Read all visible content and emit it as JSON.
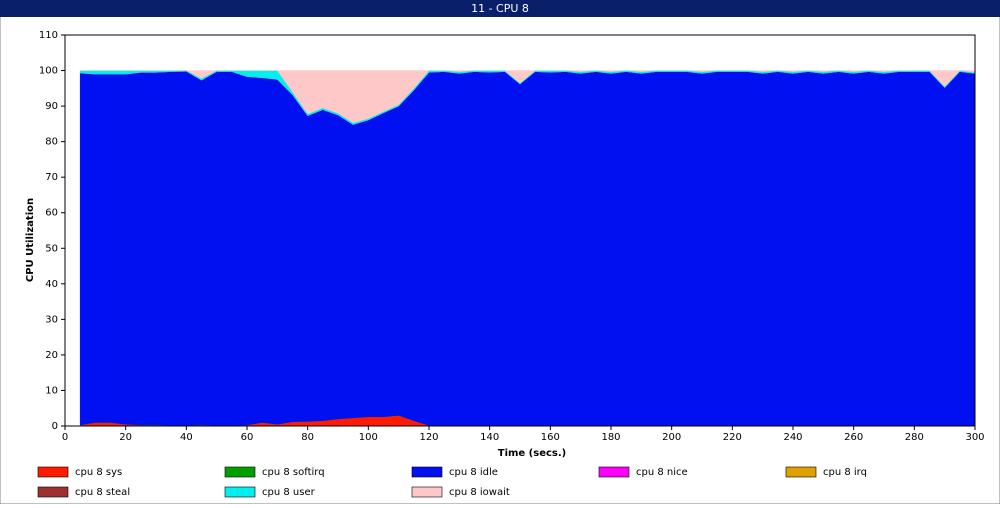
{
  "chart_data": {
    "type": "stacked-area",
    "title": "11 - CPU 8",
    "x_label": "Time (secs.)",
    "y_label": "CPU Utilization",
    "xlim": [
      0,
      300
    ],
    "ylim": [
      0,
      110
    ],
    "xticks": [
      0,
      20,
      40,
      60,
      80,
      100,
      120,
      140,
      160,
      180,
      200,
      220,
      240,
      260,
      280,
      300
    ],
    "yticks": [
      0,
      10,
      20,
      30,
      40,
      50,
      60,
      70,
      80,
      90,
      100,
      110
    ],
    "x": [
      5,
      10,
      15,
      20,
      25,
      30,
      35,
      40,
      45,
      50,
      55,
      60,
      65,
      70,
      75,
      80,
      85,
      90,
      95,
      100,
      105,
      110,
      115,
      120,
      125,
      130,
      135,
      140,
      145,
      150,
      155,
      160,
      165,
      170,
      175,
      180,
      185,
      190,
      195,
      200,
      205,
      210,
      215,
      220,
      225,
      230,
      235,
      240,
      245,
      250,
      255,
      260,
      265,
      270,
      275,
      280,
      285,
      290,
      295,
      300
    ],
    "series": [
      {
        "name": "cpu 8 sys",
        "color": "#ff1a00",
        "values": [
          0.3,
          1,
          1,
          0.5,
          0.3,
          0.3,
          0.2,
          0.2,
          0.3,
          0.2,
          0.2,
          0.3,
          1,
          0.5,
          1.2,
          1.3,
          1.5,
          2,
          2.3,
          2.6,
          2.6,
          3,
          1.5,
          0.2,
          0.2,
          0.2,
          0.2,
          0.2,
          0.2,
          0.2,
          0.2,
          0.2,
          0.2,
          0.2,
          0.2,
          0.2,
          0.2,
          0.2,
          0.2,
          0.2,
          0.2,
          0.2,
          0.2,
          0.2,
          0.2,
          0.2,
          0.2,
          0.2,
          0.2,
          0.2,
          0.2,
          0.2,
          0.2,
          0.2,
          0.2,
          0.2,
          0.2,
          0.2,
          0.2,
          0.2
        ]
      },
      {
        "name": "cpu 8 softirq",
        "color": "#00a000",
        "values": [
          0,
          0,
          0,
          0,
          0,
          0,
          0,
          0,
          0,
          0,
          0,
          0,
          0,
          0,
          0,
          0,
          0,
          0,
          0,
          0,
          0,
          0,
          0,
          0,
          0,
          0,
          0,
          0,
          0,
          0,
          0,
          0,
          0,
          0,
          0,
          0,
          0,
          0,
          0,
          0,
          0,
          0,
          0,
          0,
          0,
          0,
          0,
          0,
          0,
          0,
          0,
          0,
          0,
          0,
          0,
          0,
          0,
          0,
          0,
          0
        ]
      },
      {
        "name": "cpu 8 idle",
        "color": "#0010f0",
        "values": [
          99,
          98,
          98,
          98.5,
          99.2,
          99.2,
          99.5,
          99.6,
          97,
          99.5,
          99.5,
          98,
          97,
          97,
          92,
          86,
          87.5,
          85.5,
          82.5,
          83.5,
          85.5,
          87,
          93,
          99.3,
          99.5,
          99,
          99.5,
          99.3,
          99.5,
          96,
          99.5,
          99.3,
          99.5,
          99,
          99.5,
          99,
          99.5,
          99,
          99.5,
          99.5,
          99.5,
          99,
          99.5,
          99.5,
          99.5,
          99,
          99.5,
          99,
          99.5,
          99,
          99.5,
          99,
          99.5,
          99,
          99.5,
          99.5,
          99.5,
          95,
          99.5,
          99
        ]
      },
      {
        "name": "cpu 8 nice",
        "color": "#ff00ff",
        "values": [
          0,
          0,
          0,
          0,
          0,
          0,
          0,
          0,
          0,
          0,
          0,
          0,
          0,
          0,
          0,
          0,
          0,
          0,
          0,
          0,
          0,
          0,
          0,
          0,
          0,
          0,
          0,
          0,
          0,
          0,
          0,
          0,
          0,
          0,
          0,
          0,
          0,
          0,
          0,
          0,
          0,
          0,
          0,
          0,
          0,
          0,
          0,
          0,
          0,
          0,
          0,
          0,
          0,
          0,
          0,
          0,
          0,
          0,
          0,
          0
        ]
      },
      {
        "name": "cpu 8 irq",
        "color": "#e0a000",
        "values": [
          0,
          0,
          0,
          0,
          0,
          0,
          0,
          0,
          0,
          0,
          0,
          0,
          0,
          0,
          0,
          0,
          0,
          0,
          0,
          0,
          0,
          0,
          0,
          0,
          0,
          0,
          0,
          0,
          0,
          0,
          0,
          0,
          0,
          0,
          0,
          0,
          0,
          0,
          0,
          0,
          0,
          0,
          0,
          0,
          0,
          0,
          0,
          0,
          0,
          0,
          0,
          0,
          0,
          0,
          0,
          0,
          0,
          0,
          0,
          0
        ]
      },
      {
        "name": "cpu 8 steal",
        "color": "#a03030",
        "values": [
          0,
          0,
          0,
          0,
          0,
          0,
          0,
          0,
          0,
          0,
          0,
          0,
          0,
          0,
          0,
          0,
          0,
          0,
          0,
          0,
          0,
          0,
          0,
          0,
          0,
          0,
          0,
          0,
          0,
          0,
          0,
          0,
          0,
          0,
          0,
          0,
          0,
          0,
          0,
          0,
          0,
          0,
          0,
          0,
          0,
          0,
          0,
          0,
          0,
          0,
          0,
          0,
          0,
          0,
          0,
          0,
          0,
          0,
          0,
          0
        ]
      },
      {
        "name": "cpu 8 user",
        "color": "#00f0f0",
        "values": [
          0.7,
          1,
          1,
          1,
          0.5,
          0.5,
          0.3,
          0.2,
          0.5,
          0.3,
          0.3,
          1.7,
          2,
          2.5,
          0.8,
          0.5,
          0.5,
          0.5,
          0.5,
          0.4,
          0.4,
          0.4,
          0.5,
          0.5,
          0.3,
          0.5,
          0.3,
          0.5,
          0.3,
          0.3,
          0.3,
          0.5,
          0.3,
          0.5,
          0.3,
          0.5,
          0.3,
          0.5,
          0.3,
          0.3,
          0.3,
          0.5,
          0.3,
          0.3,
          0.3,
          0.5,
          0.3,
          0.5,
          0.3,
          0.5,
          0.3,
          0.5,
          0.3,
          0.5,
          0.3,
          0.3,
          0.3,
          0.3,
          0.3,
          0.3
        ]
      },
      {
        "name": "cpu 8 iowait",
        "color": "#ffc8c8",
        "values": [
          0,
          0,
          0,
          0,
          0,
          0,
          0,
          0,
          2.2,
          0,
          0,
          0,
          0,
          0,
          6,
          12.2,
          10.5,
          12,
          14.7,
          13.5,
          11.5,
          9.6,
          5,
          0,
          0,
          0.3,
          0,
          0,
          0,
          3.5,
          0,
          0,
          0,
          0.3,
          0,
          0.3,
          0,
          0.3,
          0,
          0,
          0,
          0.3,
          0,
          0,
          0,
          0.3,
          0,
          0.3,
          0,
          0.3,
          0,
          0.3,
          0,
          0.3,
          0,
          0,
          0,
          4.5,
          0,
          0.5
        ]
      }
    ]
  }
}
